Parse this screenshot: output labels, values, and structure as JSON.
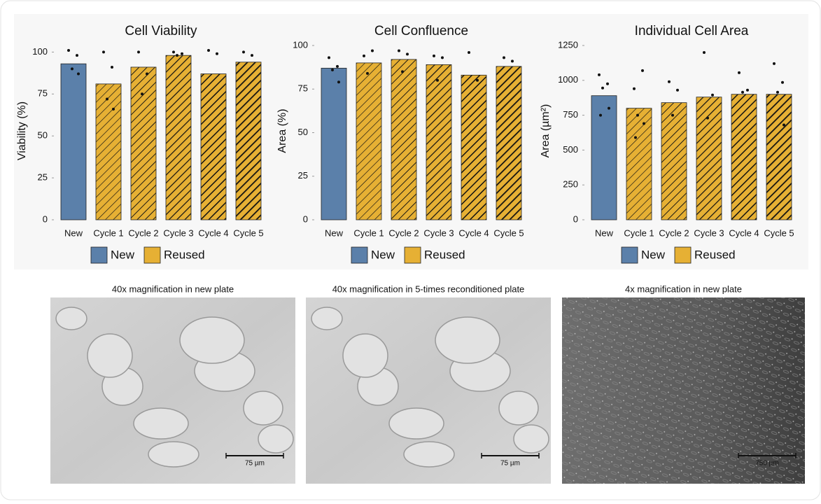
{
  "chart_data": [
    {
      "type": "bar",
      "title": "Cell Viability",
      "y_label": "Viability (%)",
      "categories": [
        "New",
        "Cycle 1",
        "Cycle 2",
        "Cycle 3",
        "Cycle 4",
        "Cycle 5"
      ],
      "ylim": [
        0,
        106
      ],
      "yticks": [
        0,
        25,
        50,
        75,
        100
      ],
      "series": [
        {
          "name": "New",
          "color": "#5b80aa",
          "values": [
            93,
            null,
            null,
            null,
            null,
            null
          ],
          "points": [
            [
              101,
              98,
              90,
              87
            ],
            null,
            null,
            null,
            null,
            null
          ]
        },
        {
          "name": "Reused",
          "color": "#e6b034",
          "values": [
            null,
            81,
            91,
            98,
            87,
            94
          ],
          "points": [
            null,
            [
              100,
              91,
              72,
              66
            ],
            [
              100,
              87,
              75
            ],
            [
              100,
              99,
              98
            ],
            [
              101,
              99
            ],
            [
              100,
              98
            ]
          ]
        }
      ]
    },
    {
      "type": "bar",
      "title": "Cell Confluence",
      "y_label": "Area (%)",
      "categories": [
        "New",
        "Cycle 1",
        "Cycle 2",
        "Cycle 3",
        "Cycle 4",
        "Cycle 5"
      ],
      "ylim": [
        0,
        102
      ],
      "yticks": [
        0,
        25,
        50,
        75,
        100
      ],
      "series": [
        {
          "name": "New",
          "color": "#5b80aa",
          "values": [
            87,
            null,
            null,
            null,
            null,
            null
          ],
          "points": [
            [
              93,
              88,
              86,
              79
            ],
            null,
            null,
            null,
            null,
            null
          ]
        },
        {
          "name": "Reused",
          "color": "#e6b034",
          "values": [
            null,
            90,
            92,
            89,
            83,
            88
          ],
          "points": [
            null,
            [
              94,
              97,
              84
            ],
            [
              97,
              95,
              85
            ],
            [
              94,
              93,
              80
            ],
            [
              96,
              80
            ],
            [
              93,
              91
            ]
          ]
        }
      ]
    },
    {
      "type": "bar",
      "title": "Individual Cell Area",
      "y_label": "Area (µm²)",
      "categories": [
        "New",
        "Cycle 1",
        "Cycle 2",
        "Cycle 3",
        "Cycle 4",
        "Cycle 5"
      ],
      "ylim": [
        0,
        1275
      ],
      "yticks": [
        0,
        250,
        500,
        750,
        1000,
        1250
      ],
      "series": [
        {
          "name": "New",
          "color": "#5b80aa",
          "values": [
            890,
            null,
            null,
            null,
            null,
            null
          ],
          "points": [
            [
              1040,
              975,
              945,
              800,
              750
            ],
            null,
            null,
            null,
            null,
            null
          ]
        },
        {
          "name": "Reused",
          "color": "#e6b034",
          "values": [
            null,
            800,
            840,
            880,
            900,
            900
          ],
          "points": [
            null,
            [
              940,
              1070,
              750,
              690,
              590
            ],
            [
              990,
              930,
              750
            ],
            [
              1200,
              895,
              730
            ],
            [
              1055,
              930,
              915
            ],
            [
              1120,
              985,
              915,
              680
            ]
          ]
        }
      ]
    }
  ],
  "images": [
    {
      "caption": "40x magnification in new plate",
      "scale_label": "75 µm"
    },
    {
      "caption": "40x magnification in 5-times reconditioned plate",
      "scale_label": "75 µm"
    },
    {
      "caption": "4x magnification in new plate",
      "scale_label": "750 µm"
    }
  ]
}
